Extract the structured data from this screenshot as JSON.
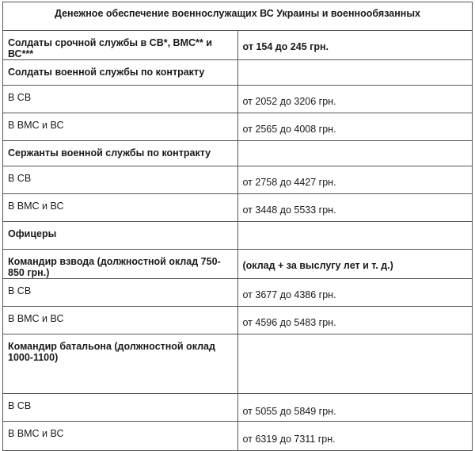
{
  "title": "Денежное обеспечение военнослужащих ВС Украины и военнообязанных",
  "rows": [
    {
      "label": "Солдаты срочной службы в СВ*, ВМС** и ВС***",
      "value": "от 154 до 245 грн.",
      "bold": true
    },
    {
      "label": "Солдаты военной службы по контракту",
      "value": "",
      "bold": true
    },
    {
      "label": "В СВ",
      "value": "от  2052 до 3206 грн.",
      "bold": false
    },
    {
      "label": "В ВМС и ВС",
      "value": "от  2565 до 4008 грн.",
      "bold": false
    },
    {
      "label": "Сержанты военной службы по контракту",
      "value": "",
      "bold": true
    },
    {
      "label": "В СВ",
      "value": "от 2758 до 4427 грн.",
      "bold": false
    },
    {
      "label": "В ВМС и ВС",
      "value": "от 3448 до 5533 грн.",
      "bold": false
    },
    {
      "label": "Офицеры",
      "value": "",
      "bold": true
    },
    {
      "label": "Командир взвода (должностной оклад 750-850 грн.)",
      "value": "(оклад + за выслугу лет и т. д.)",
      "bold": true
    },
    {
      "label": "В СВ",
      "value": "от  3677 до 4386 грн.",
      "bold": false
    },
    {
      "label": "В ВМС и ВС",
      "value": "от 4596 до 5483 грн.",
      "bold": false
    },
    {
      "label": "Командир батальона (должностной оклад 1000-1100)",
      "value": "",
      "bold": true
    },
    {
      "label": "В СВ",
      "value": "от  5055 до 5849 грн.",
      "bold": false
    },
    {
      "label": "В ВМС и ВС",
      "value": "от 6319 до 7311 грн.",
      "bold": false
    }
  ]
}
